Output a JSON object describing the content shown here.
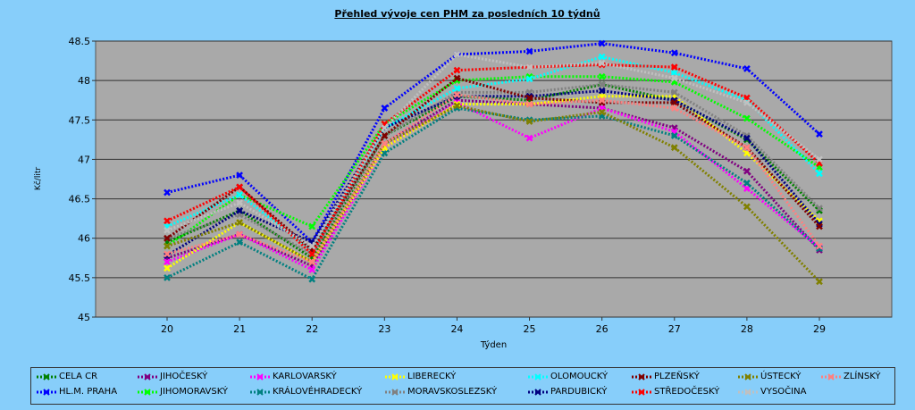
{
  "chart_data": {
    "type": "line",
    "title": "Přehled vývoje cen PHM za posledních 10 týdnů",
    "xlabel": "Týden",
    "ylabel": "Kč/litr",
    "ylim": [
      45,
      48.5
    ],
    "yticks": [
      "45",
      "45.5",
      "46",
      "46.5",
      "47",
      "47.5",
      "48",
      "48.5"
    ],
    "x": [
      "20",
      "21",
      "22",
      "23",
      "24",
      "25",
      "26",
      "27",
      "28",
      "29"
    ],
    "grid": true,
    "legend_position": "bottom",
    "series": [
      {
        "name": "CELA CR",
        "color": "#008000",
        "values": [
          45.95,
          46.35,
          45.75,
          47.3,
          47.8,
          47.75,
          47.95,
          47.75,
          47.25,
          46.35
        ]
      },
      {
        "name": "HL.M. PRAHA",
        "color": "#0000FF",
        "values": [
          46.58,
          46.8,
          45.95,
          47.65,
          48.33,
          48.37,
          48.47,
          48.35,
          48.15,
          47.32
        ]
      },
      {
        "name": "JIHOČESKÝ",
        "color": "#800080",
        "values": [
          45.75,
          46.05,
          45.65,
          47.2,
          47.75,
          47.7,
          47.65,
          47.4,
          46.85,
          45.85
        ]
      },
      {
        "name": "JIHOMORAVSKÝ",
        "color": "#00FF00",
        "values": [
          45.9,
          46.55,
          46.15,
          47.45,
          48.0,
          48.05,
          48.05,
          47.98,
          47.52,
          46.9
        ]
      },
      {
        "name": "KARLOVARSKÝ",
        "color": "#FF00FF",
        "values": [
          45.7,
          46.05,
          45.6,
          47.15,
          47.72,
          47.27,
          47.65,
          47.35,
          46.63,
          45.88
        ]
      },
      {
        "name": "KRÁLOVÉHRADECKÝ",
        "color": "#008080",
        "values": [
          45.5,
          45.95,
          45.48,
          47.08,
          47.65,
          47.5,
          47.55,
          47.3,
          46.7,
          45.87
        ]
      },
      {
        "name": "LIBERECKÝ",
        "color": "#FFFF00",
        "values": [
          45.62,
          46.2,
          45.7,
          47.15,
          47.7,
          47.7,
          47.8,
          47.8,
          47.08,
          46.22
        ]
      },
      {
        "name": "MORAVSKOSLEZSKÝ",
        "color": "#808080",
        "values": [
          46.0,
          46.3,
          45.8,
          47.3,
          47.85,
          47.85,
          47.95,
          47.85,
          47.3,
          46.38
        ]
      },
      {
        "name": "OLOMOUCKÝ",
        "color": "#00FFFF",
        "values": [
          46.15,
          46.55,
          45.85,
          47.4,
          47.9,
          48.02,
          48.3,
          48.1,
          47.75,
          46.82
        ]
      },
      {
        "name": "PARDUBICKÝ",
        "color": "#000080",
        "values": [
          45.78,
          46.35,
          45.95,
          47.4,
          47.8,
          47.8,
          47.87,
          47.75,
          47.27,
          46.18
        ]
      },
      {
        "name": "PLZEŇSKÝ",
        "color": "#800000",
        "values": [
          46.0,
          46.65,
          45.85,
          47.3,
          48.03,
          47.78,
          47.72,
          47.72,
          47.15,
          46.15
        ]
      },
      {
        "name": "STŘEDOČESKÝ",
        "color": "#FF0000",
        "values": [
          46.22,
          46.65,
          45.8,
          47.45,
          48.13,
          48.17,
          48.2,
          48.17,
          47.78,
          46.95
        ]
      },
      {
        "name": "ÚSTECKÝ",
        "color": "#808000",
        "values": [
          45.9,
          46.2,
          45.7,
          47.2,
          47.68,
          47.48,
          47.6,
          47.15,
          46.4,
          45.45
        ]
      },
      {
        "name": "VYSOČINA",
        "color": "#C0C0C0",
        "values": [
          46.1,
          46.45,
          45.9,
          47.4,
          48.33,
          48.17,
          48.22,
          48.03,
          47.72,
          47.0
        ]
      },
      {
        "name": "ZLÍNSKÝ",
        "color": "#FF8080",
        "values": [
          45.8,
          46.05,
          45.7,
          47.2,
          47.82,
          47.7,
          47.75,
          47.65,
          47.15,
          45.9
        ]
      }
    ],
    "legend_order": [
      "CELA CR",
      "JIHOČESKÝ",
      "KARLOVARSKÝ",
      "LIBERECKÝ",
      "OLOMOUCKÝ",
      "PLZEŇSKÝ",
      "ÚSTECKÝ",
      "ZLÍNSKÝ",
      "HL.M. PRAHA",
      "JIHOMORAVSKÝ",
      "KRÁLOVÉHRADECKÝ",
      "MORAVSKOSLEZSKÝ",
      "PARDUBICKÝ",
      "STŘEDOČESKÝ",
      "VYSOČINA"
    ]
  }
}
